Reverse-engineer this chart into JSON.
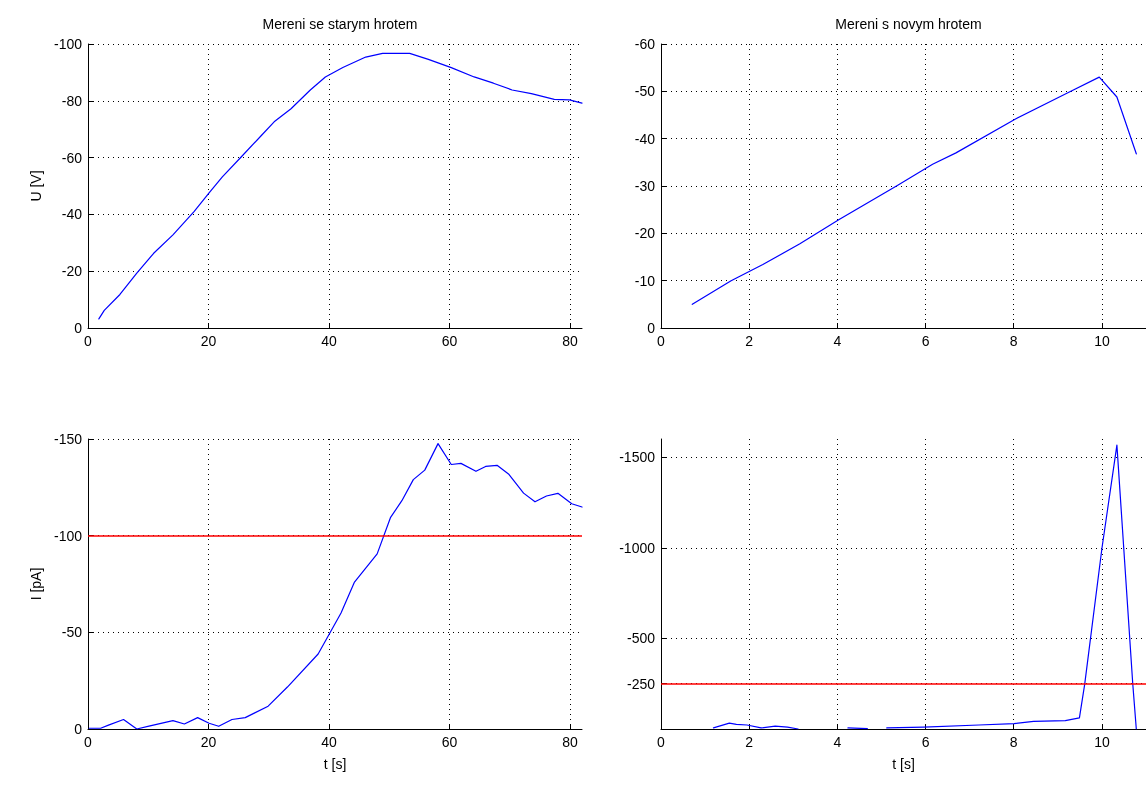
{
  "chart_data": [
    {
      "type": "line",
      "title": "Mereni se starym hrotem",
      "ylabel": "U [V]",
      "xlim": [
        0,
        82
      ],
      "xticks": [
        0,
        20,
        40,
        60,
        80
      ],
      "ylim": [
        0,
        -100
      ],
      "yticks": [
        0,
        -20,
        -40,
        -60,
        -80,
        -100
      ],
      "grid": true,
      "marker": "none",
      "line_style": "solid",
      "series": [
        {
          "color": "#0000ff",
          "x": [
            1.8,
            2.7,
            5.3,
            8.1,
            10.9,
            14.1,
            17.6,
            20.1,
            22.3,
            25.5,
            28.7,
            30.9,
            33.7,
            36.9,
            39.4,
            42.3,
            46.1,
            48.9,
            53.4,
            56.5,
            60.3,
            64.1,
            67.3,
            70.4,
            73.6,
            77.4,
            79.9,
            82
          ],
          "values": [
            -3.2,
            -6.2,
            -11.8,
            -19.3,
            -26.3,
            -32.8,
            -41,
            -47.6,
            -53.2,
            -60.4,
            -67.6,
            -72.6,
            -77.2,
            -83.8,
            -88.4,
            -91.7,
            -95.4,
            -96.7,
            -96.7,
            -94.6,
            -91.7,
            -88.4,
            -86.2,
            -83.8,
            -82.5,
            -80.5,
            -80.3,
            -79.2
          ]
        }
      ]
    },
    {
      "type": "line",
      "title": "Mereni s novym hrotem",
      "xlim": [
        0,
        11
      ],
      "xticks": [
        0,
        2,
        4,
        6,
        8,
        10
      ],
      "ylim": [
        0,
        -60
      ],
      "yticks": [
        0,
        -10,
        -20,
        -30,
        -40,
        -50,
        -60
      ],
      "grid": true,
      "marker": "none",
      "line_style": "solid",
      "series": [
        {
          "color": "#0000ff",
          "x": [
            0.71,
            1.59,
            2.31,
            3.15,
            4.04,
            5.36,
            6.16,
            6.69,
            8.05,
            9.25,
            9.94,
            10.34,
            10.78
          ],
          "values": [
            -5,
            -10,
            -13.4,
            -17.8,
            -22.9,
            -30.1,
            -34.6,
            -37,
            -44.2,
            -49.8,
            -53,
            -48.8,
            -36.8
          ]
        }
      ]
    },
    {
      "type": "line",
      "xlabel": "t [s]",
      "ylabel": "I [pA]",
      "xlim": [
        0,
        82
      ],
      "xticks": [
        0,
        20,
        40,
        60,
        80
      ],
      "ylim": [
        0,
        -150
      ],
      "yticks": [
        0,
        -50,
        -100,
        -150
      ],
      "grid": true,
      "marker": "none",
      "line_style": "solid",
      "ref_lines": [
        {
          "axis": "y",
          "value": -100,
          "color": "#ff0000"
        }
      ],
      "series": [
        {
          "color": "#0000ff",
          "x": [
            0.2,
            2.1,
            3.4,
            5.9,
            8.1,
            10.3,
            14.1,
            16,
            18.2,
            20.1,
            21.7,
            23.9,
            26.1,
            29.9,
            33.1,
            38.2,
            42,
            44.2,
            48,
            50.2,
            52.1,
            54,
            55.9,
            58.1,
            60.3,
            61.9,
            64.4,
            66,
            67.9,
            69.8,
            72.3,
            74.2,
            76.1,
            78,
            80.3,
            82
          ],
          "values": [
            -0.4,
            -0.4,
            -2,
            -4.9,
            0,
            -1.6,
            -4.3,
            -2.6,
            -5.9,
            -3,
            -1.4,
            -4.9,
            -5.9,
            -11.8,
            -21.7,
            -38.8,
            -60,
            -75.8,
            -90.6,
            -109.3,
            -118.1,
            -129,
            -133.9,
            -147.6,
            -136.8,
            -137.4,
            -133.3,
            -135.8,
            -136.4,
            -131.9,
            -122,
            -117.5,
            -120.5,
            -121.9,
            -116.5,
            -114.8
          ]
        }
      ]
    },
    {
      "type": "line",
      "xlabel": "t [s]",
      "xlim": [
        0,
        11
      ],
      "xticks": [
        0,
        2,
        4,
        6,
        8,
        10
      ],
      "ylim": [
        0,
        -1600
      ],
      "yticks": [
        {
          "value": 0,
          "label": null
        },
        -250,
        -500,
        -1000,
        -1500
      ],
      "grid": true,
      "marker": "none",
      "line_style": "solid",
      "ref_lines": [
        {
          "axis": "y",
          "value": -250,
          "color": "#ff0000"
        }
      ],
      "series": [
        {
          "color": "#0000ff",
          "x": [
            1.19,
            1.55,
            1.71,
            1.95,
            2.27,
            2.59,
            2.87,
            3.11,
            3.6,
            4.24,
            4.68,
            4.9,
            5.12,
            5.96,
            7.21,
            8.01,
            8.45,
            9.17,
            9.49,
            9.61,
            10.0,
            10.34,
            10.7,
            10.78
          ],
          "values": [
            -6,
            -32,
            -26,
            -22,
            -6,
            -16,
            -10,
            0,
            null,
            -6,
            -2,
            null,
            -6,
            -10,
            -22,
            -30,
            -42,
            -46,
            -61,
            -248,
            -996,
            -1566,
            -248,
            0
          ]
        }
      ]
    }
  ]
}
